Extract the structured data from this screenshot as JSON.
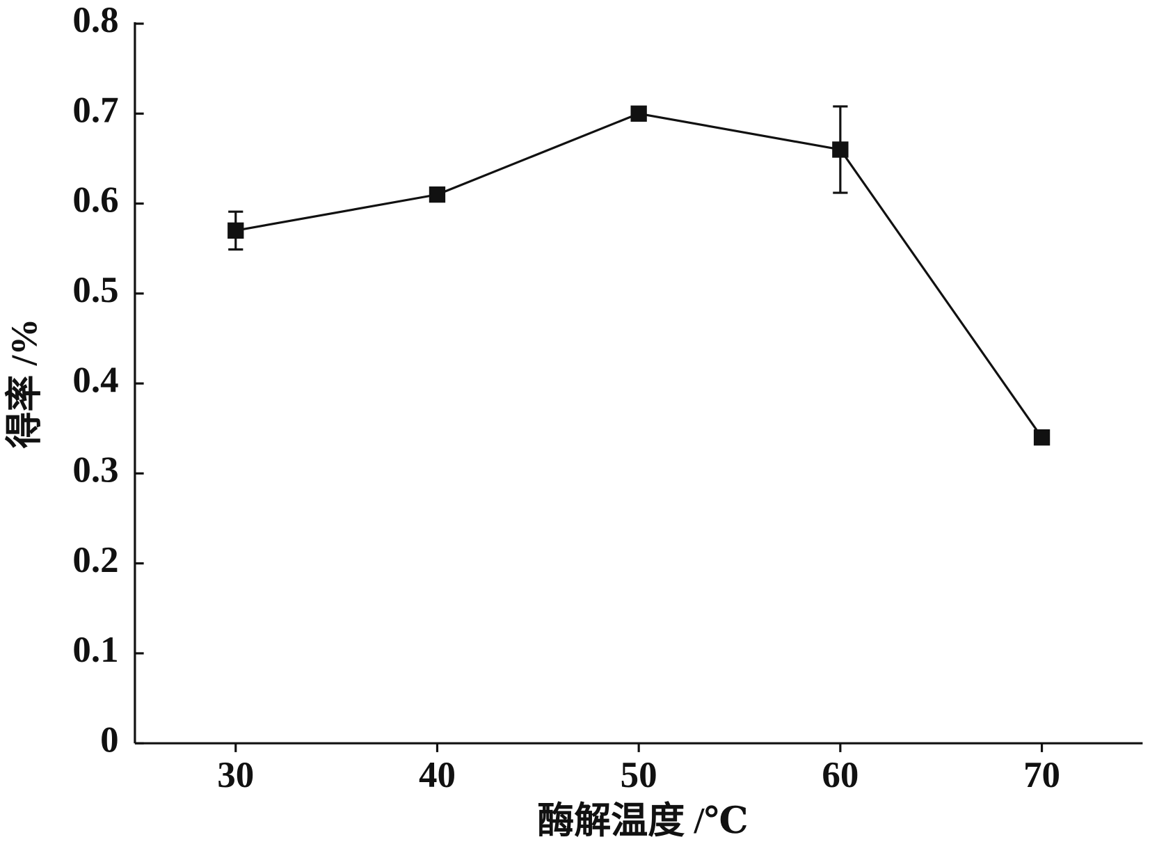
{
  "chart_data": {
    "type": "line",
    "xlabel": "酶解温度 /℃",
    "ylabel": "得率 /%",
    "x": [
      30,
      40,
      50,
      60,
      70
    ],
    "series": [
      {
        "color": "#111111",
        "values": [
          0.57,
          0.61,
          0.7,
          0.66,
          0.34
        ],
        "errors": [
          0.021,
          0,
          0,
          0.048,
          0
        ]
      }
    ],
    "xlim": [
      25,
      75
    ],
    "xticks": [
      30,
      40,
      50,
      60,
      70
    ],
    "ylim": [
      0,
      0.8
    ],
    "yticks": [
      0,
      0.1,
      0.2,
      0.3,
      0.4,
      0.5,
      0.6,
      0.7,
      0.8
    ],
    "grid": false
  }
}
